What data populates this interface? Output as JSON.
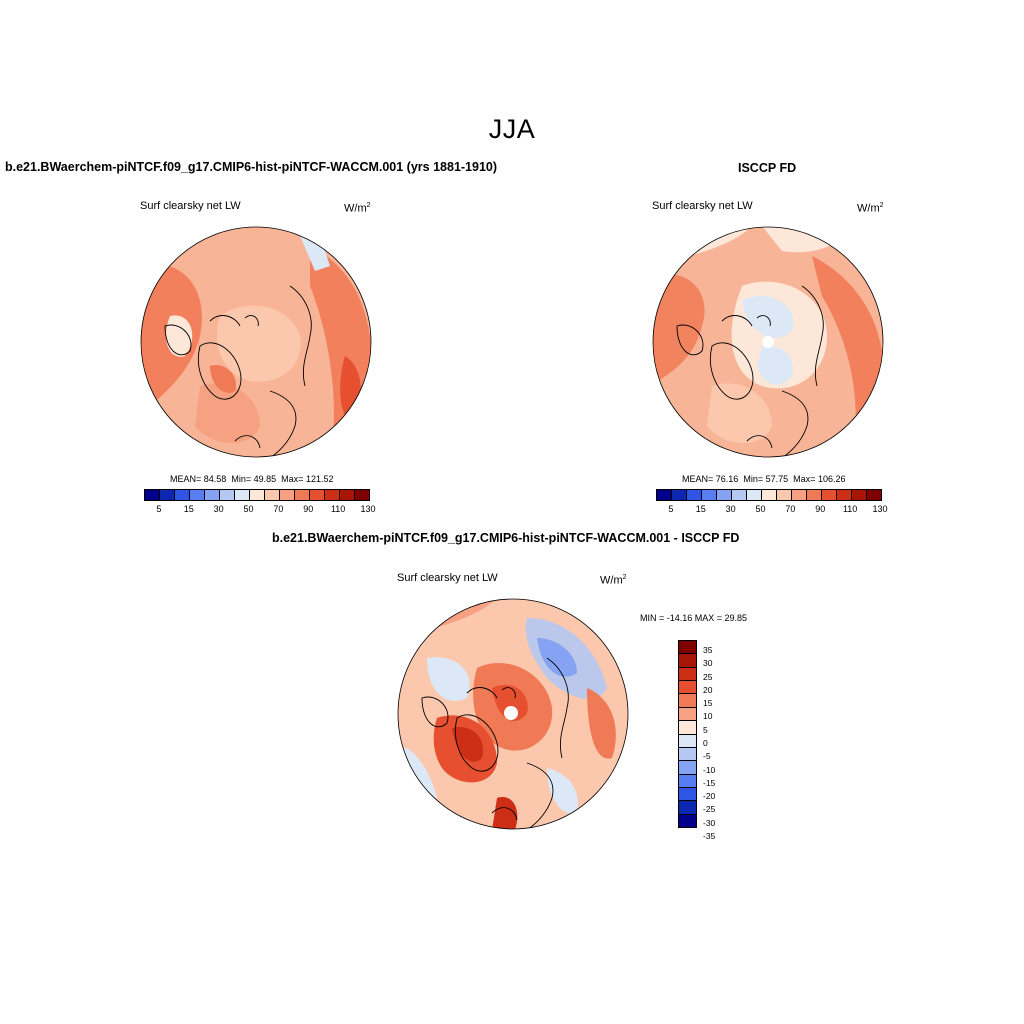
{
  "main_title": "JJA",
  "colors": {
    "abs_scale": [
      "#00008b",
      "#0c27b0",
      "#2e55e6",
      "#587df0",
      "#85a3f2",
      "#b4c8f3",
      "#dde8f7",
      "#fce7d9",
      "#fbc8ae",
      "#f6a282",
      "#f17a56",
      "#e64f2f",
      "#cd2e16",
      "#a81608",
      "#7f0000"
    ],
    "diff_scale": [
      "#7f0000",
      "#a81608",
      "#cd2e16",
      "#e64f2f",
      "#f17a56",
      "#f6a282",
      "#fce7d9",
      "#dde8f7",
      "#b4c8f3",
      "#85a3f2",
      "#587df0",
      "#2e55e6",
      "#0c27b0",
      "#00008b"
    ]
  },
  "panels": {
    "model": {
      "title": "b.e21.BWaerchem-piNTCF.f09_g17.CMIP6-hist-piNTCF-WACCM.001 (yrs 1881-1910)",
      "variable": "Surf clearsky net LW",
      "units_base": "W/m",
      "units_exp": "2",
      "mean_label": "MEAN=",
      "mean": "84.58",
      "min_label": "Min=",
      "min": "49.85",
      "max_label": "Max=",
      "max": "121.52",
      "ticks": [
        "5",
        "15",
        "30",
        "50",
        "70",
        "90",
        "110",
        "130"
      ]
    },
    "obs": {
      "title": "ISCCP FD",
      "variable": "Surf clearsky net LW",
      "units_base": "W/m",
      "units_exp": "2",
      "mean_label": "MEAN=",
      "mean": "76.16",
      "min_label": "Min=",
      "min": "57.75",
      "max_label": "Max=",
      "max": "106.26",
      "ticks": [
        "5",
        "15",
        "30",
        "50",
        "70",
        "90",
        "110",
        "130"
      ]
    },
    "diff": {
      "title": "b.e21.BWaerchem-piNTCF.f09_g17.CMIP6-hist-piNTCF-WACCM.001 - ISCCP FD",
      "variable": "Surf clearsky net LW",
      "units_base": "W/m",
      "units_exp": "2",
      "minmax": "MIN = -14.16 MAX =  29.85",
      "ticks": [
        "35",
        "30",
        "25",
        "20",
        "15",
        "10",
        "5",
        "0",
        "-5",
        "-10",
        "-15",
        "-20",
        "-25",
        "-30",
        "-35"
      ]
    }
  },
  "chart_data": [
    {
      "type": "heatmap",
      "projection": "north-polar-stereographic",
      "title": "b.e21.BWaerchem-piNTCF.f09_g17.CMIP6-hist-piNTCF-WACCM.001 (yrs 1881-1910)",
      "variable": "Surf clearsky net LW",
      "units": "W/m2",
      "stats": {
        "mean": 84.58,
        "min": 49.85,
        "max": 121.52
      },
      "colorbar_levels": [
        5,
        10,
        15,
        20,
        30,
        40,
        50,
        60,
        70,
        80,
        90,
        100,
        110,
        120,
        130
      ],
      "colorbar_tick_labels": [
        "5",
        "15",
        "30",
        "50",
        "70",
        "90",
        "110",
        "130"
      ]
    },
    {
      "type": "heatmap",
      "projection": "north-polar-stereographic",
      "title": "ISCCP FD",
      "variable": "Surf clearsky net LW",
      "units": "W/m2",
      "stats": {
        "mean": 76.16,
        "min": 57.75,
        "max": 106.26
      },
      "colorbar_levels": [
        5,
        10,
        15,
        20,
        30,
        40,
        50,
        60,
        70,
        80,
        90,
        100,
        110,
        120,
        130
      ],
      "colorbar_tick_labels": [
        "5",
        "15",
        "30",
        "50",
        "70",
        "90",
        "110",
        "130"
      ]
    },
    {
      "type": "heatmap",
      "projection": "north-polar-stereographic",
      "title": "b.e21.BWaerchem-piNTCF.f09_g17.CMIP6-hist-piNTCF-WACCM.001 - ISCCP FD",
      "variable": "Surf clearsky net LW",
      "units": "W/m2",
      "stats": {
        "min": -14.16,
        "max": 29.85
      },
      "colorbar_levels": [
        35,
        30,
        25,
        20,
        15,
        10,
        5,
        0,
        -5,
        -10,
        -15,
        -20,
        -25,
        -30,
        -35
      ],
      "colorbar_tick_labels": [
        "35",
        "30",
        "25",
        "20",
        "15",
        "10",
        "5",
        "0",
        "-5",
        "-10",
        "-15",
        "-20",
        "-25",
        "-30",
        "-35"
      ]
    }
  ]
}
